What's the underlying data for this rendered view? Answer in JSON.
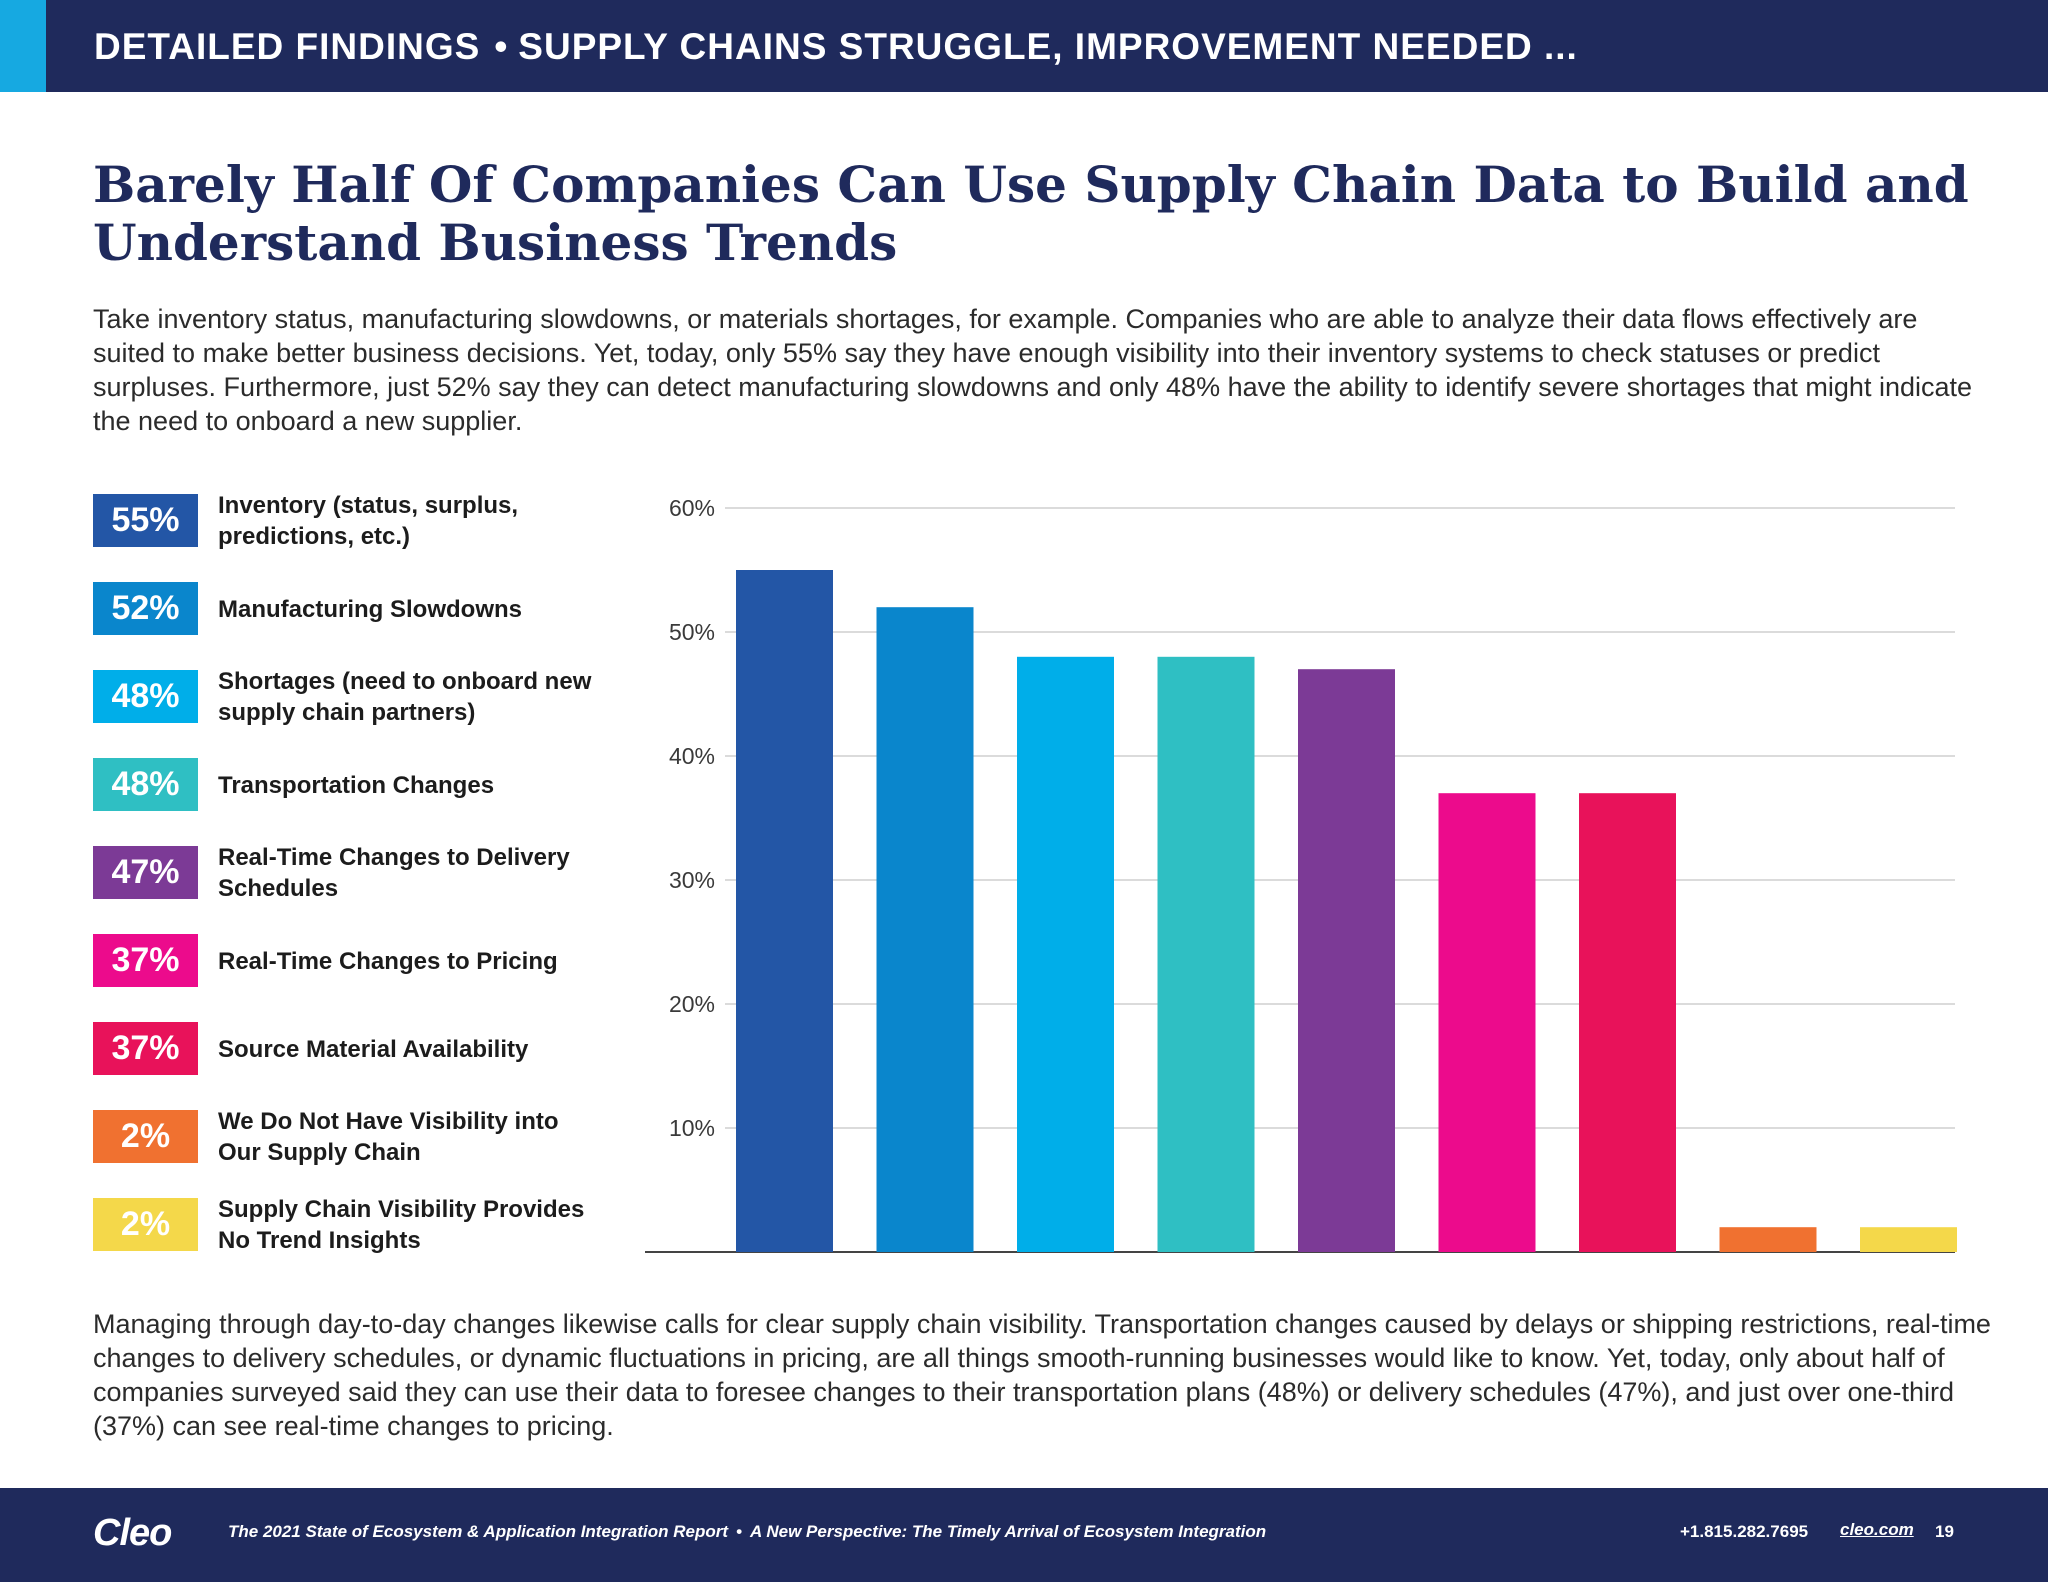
{
  "header": {
    "section": "DETAILED FINDINGS",
    "separator": "•",
    "subtitle": "SUPPLY CHAINS STRUGGLE, IMPROVEMENT NEEDED ..."
  },
  "headline": "Barely Half Of Companies Can Use Supply Chain Data to Build and Understand Business Trends",
  "intro": "Take inventory status, manufacturing slowdowns, or materials shortages, for example. Companies who are able to analyze their data flows effectively are suited to make better business decisions. Yet, today, only 55% say they have enough visibility into their inventory systems to check statuses or predict surpluses. Furthermore, just 52% say they can detect manufacturing slowdowns and only 48% have the ability to identify severe shortages that might indicate the need to onboard a new supplier.",
  "legend": [
    {
      "value": "55%",
      "label": "Inventory (status, surplus, predictions, etc.)",
      "color": "#2356a6"
    },
    {
      "value": "52%",
      "label": "Manufacturing Slowdowns",
      "color": "#0a86cc"
    },
    {
      "value": "48%",
      "label": "Shortages (need to onboard new supply chain partners)",
      "color": "#00aee9"
    },
    {
      "value": "48%",
      "label": "Transportation Changes",
      "color": "#2fbfc3"
    },
    {
      "value": "47%",
      "label": "Real-Time Changes to Delivery Schedules",
      "color": "#7c3a96"
    },
    {
      "value": "37%",
      "label": "Real-Time Changes to Pricing",
      "color": "#ec0b8c"
    },
    {
      "value": "37%",
      "label": "Source Material Availability",
      "color": "#e8125a"
    },
    {
      "value": "2%",
      "label": "We Do Not Have Visibility into Our Supply Chain",
      "color": "#f07130"
    },
    {
      "value": "2%",
      "label": "Supply Chain Visibility Provides No Trend Insights",
      "color": "#f4d84a"
    }
  ],
  "chart_data": {
    "type": "bar",
    "categories": [
      "Inventory (status, surplus, predictions, etc.)",
      "Manufacturing Slowdowns",
      "Shortages (need to onboard new supply chain partners)",
      "Transportation Changes",
      "Real-Time Changes to Delivery Schedules",
      "Real-Time Changes to Pricing",
      "Source Material Availability",
      "We Do Not Have Visibility into Our Supply Chain",
      "Supply Chain Visibility Provides No Trend Insights"
    ],
    "values": [
      55,
      52,
      48,
      48,
      47,
      37,
      37,
      2,
      2
    ],
    "colors": [
      "#2356a6",
      "#0a86cc",
      "#00aee9",
      "#2fbfc3",
      "#7c3a96",
      "#ec0b8c",
      "#e8125a",
      "#f07130",
      "#f4d84a"
    ],
    "ylim": [
      0,
      60
    ],
    "yticks": [
      10,
      20,
      30,
      40,
      50,
      60
    ],
    "ytick_labels": [
      "10%",
      "20%",
      "30%",
      "40%",
      "50%",
      "60%"
    ],
    "grid": true,
    "title": "",
    "xlabel": "",
    "ylabel": ""
  },
  "outro": "Managing through day-to-day changes likewise calls for clear supply chain visibility. Transportation changes caused by delays or shipping restrictions, real-time changes to delivery schedules, or dynamic fluctuations in pricing, are all things smooth-running businesses would like to know. Yet, today, only about half of companies surveyed said they can use their data to foresee changes to their transportation plans (48%) or delivery schedules (47%), and just over one-third (37%) can see real-time changes to pricing.",
  "footer": {
    "logo": "Cleo",
    "report": "The 2021 State of Ecosystem & Application Integration Report",
    "dot": "•",
    "perspective": "A New Perspective: The Timely Arrival of Ecosystem Integration",
    "phone": "+1.815.282.7695",
    "link": "cleo.com",
    "page": "19"
  }
}
